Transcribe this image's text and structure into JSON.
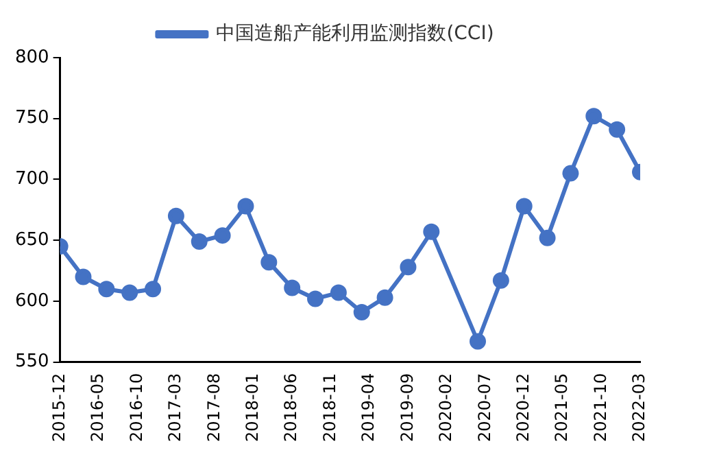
{
  "chart_data": {
    "type": "line",
    "x": [
      "2015-12",
      "2016-03",
      "2016-06",
      "2016-09",
      "2016-12",
      "2017-03",
      "2017-06",
      "2017-09",
      "2017-12",
      "2018-03",
      "2018-06",
      "2018-09",
      "2018-12",
      "2019-03",
      "2019-06",
      "2019-09",
      "2019-12",
      "2020-06",
      "2020-09",
      "2020-12",
      "2021-03",
      "2021-06",
      "2021-09",
      "2021-12",
      "2022-03"
    ],
    "series": [
      {
        "name": "中国造船产能利用监测指数(CCI)",
        "color": "#4472c4",
        "values": [
          645,
          620,
          610,
          607,
          610,
          670,
          649,
          654,
          678,
          632,
          611,
          602,
          607,
          591,
          603,
          628,
          657,
          567,
          617,
          678,
          652,
          705,
          752,
          741,
          706
        ]
      }
    ],
    "xlim": [
      "2015-12",
      "2022-03"
    ],
    "xticks": [
      "2015-12",
      "2016-05",
      "2016-10",
      "2017-03",
      "2017-08",
      "2018-01",
      "2018-06",
      "2018-11",
      "2019-04",
      "2019-09",
      "2020-02",
      "2020-07",
      "2020-12",
      "2021-05",
      "2021-10",
      "2022-03"
    ],
    "ylim": [
      550,
      800
    ],
    "yticks": [
      550,
      600,
      650,
      700,
      750,
      800
    ],
    "grid": false,
    "legend": "top",
    "marker": "circle",
    "line_style": "solid"
  }
}
